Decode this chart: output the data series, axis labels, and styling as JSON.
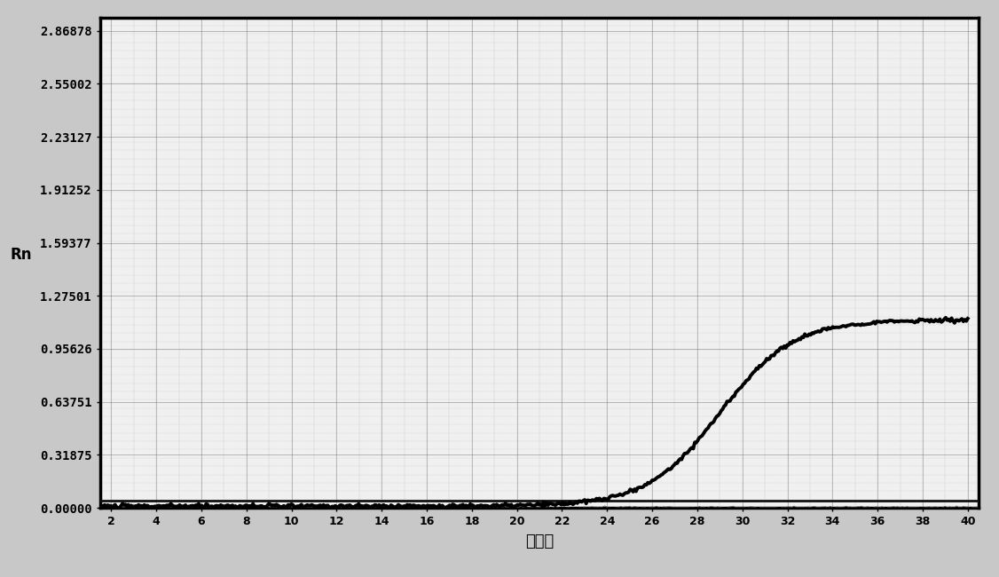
{
  "xlabel": "循环数",
  "ylabel": "Rn",
  "ytick_values": [
    0.0,
    0.31875,
    0.63751,
    0.95626,
    1.27501,
    1.59377,
    1.91252,
    2.23127,
    2.55002,
    2.86878
  ],
  "ytick_labels": [
    "0.00000",
    "0.31875",
    "0.63751",
    "0.95626",
    "1.27501",
    "1.59377",
    "1.91252",
    "2.23127",
    "2.55002",
    "2.86878"
  ],
  "ylim": [
    0.0,
    2.95
  ],
  "xlim": [
    1.5,
    40.5
  ],
  "fig_bg_color": "#c8c8c8",
  "plot_bg_color": "#f0f0f0",
  "line_color": "#000000",
  "threshold_color": "#111111",
  "grid_color": "#888888",
  "sigmoid_midpoint": 29.0,
  "sigmoid_steepness": 0.62,
  "sigmoid_max": 1.12,
  "noise_amplitude": 0.006,
  "baseline_value": 0.01,
  "threshold_y": 0.042
}
